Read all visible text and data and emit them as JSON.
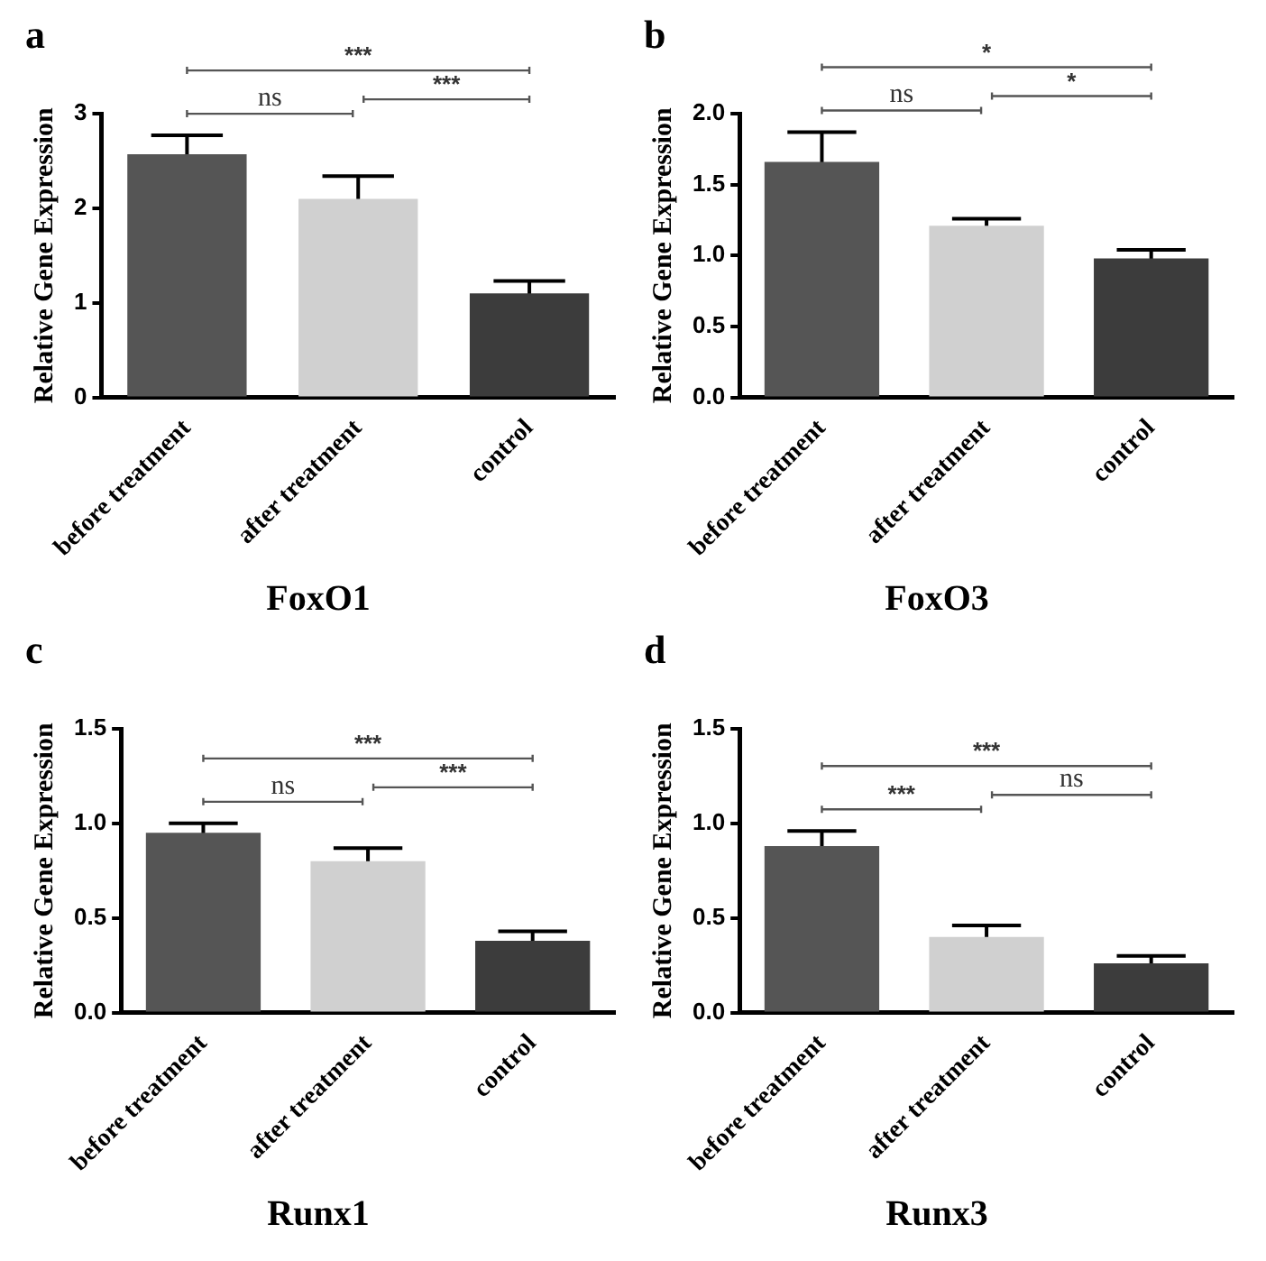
{
  "chart_data": [
    {
      "type": "bar",
      "title": "FoxO1",
      "ylabel": "Relative Gene Expression",
      "categories": [
        "before treatment",
        "after treatment",
        "control"
      ],
      "values": [
        2.57,
        2.1,
        1.1
      ],
      "errors": [
        0.2,
        0.24,
        0.13
      ],
      "colors": [
        "#555555",
        "#d0d0d0",
        "#3c3c3c"
      ],
      "ylim": [
        0,
        3
      ],
      "yticks": [
        0,
        1,
        2,
        3
      ],
      "annotations": [
        "a",
        "ns",
        "***",
        "***"
      ]
    },
    {
      "type": "bar",
      "title": "FoxO3",
      "ylabel": "Relative Gene Expression",
      "categories": [
        "before treatment",
        "after treatment",
        "control"
      ],
      "values": [
        1.66,
        1.21,
        0.98
      ],
      "errors": [
        0.21,
        0.05,
        0.06
      ],
      "colors": [
        "#555555",
        "#d0d0d0",
        "#3c3c3c"
      ],
      "ylim": [
        0,
        2
      ],
      "yticks": [
        {
          "value": 0,
          "label": "0.0"
        },
        0.5,
        {
          "value": 1,
          "label": "1.0"
        },
        1.5,
        {
          "value": 2,
          "label": "2.0"
        }
      ],
      "annotations": [
        "b",
        "ns",
        "*",
        "*"
      ]
    },
    {
      "type": "bar",
      "title": "Runx1",
      "ylabel": "Relative Gene Expression",
      "categories": [
        "before treatment",
        "after treatment",
        "control"
      ],
      "values": [
        0.95,
        0.8,
        0.38
      ],
      "errors": [
        0.05,
        0.07,
        0.05
      ],
      "colors": [
        "#555555",
        "#d0d0d0",
        "#3c3c3c"
      ],
      "ylim": [
        0,
        1.5
      ],
      "yticks": [
        {
          "value": 0,
          "label": "0.0"
        },
        0.5,
        {
          "value": 1,
          "label": "1.0"
        },
        1.5
      ],
      "annotations": [
        "c",
        "ns",
        "***",
        "***"
      ]
    },
    {
      "type": "bar",
      "title": "Runx3",
      "ylabel": "Relative Gene Expression",
      "categories": [
        "before treatment",
        "after treatment",
        "control"
      ],
      "values": [
        0.88,
        0.4,
        0.26
      ],
      "errors": [
        0.08,
        0.06,
        0.04
      ],
      "colors": [
        "#555555",
        "#d0d0d0",
        "#3c3c3c"
      ],
      "ylim": [
        0,
        1.5
      ],
      "yticks": [
        {
          "value": 0,
          "label": "0.0"
        },
        0.5,
        {
          "value": 1,
          "label": "1.0"
        },
        1.5
      ],
      "annotations": [
        "d",
        "***",
        "ns",
        "***"
      ]
    }
  ]
}
